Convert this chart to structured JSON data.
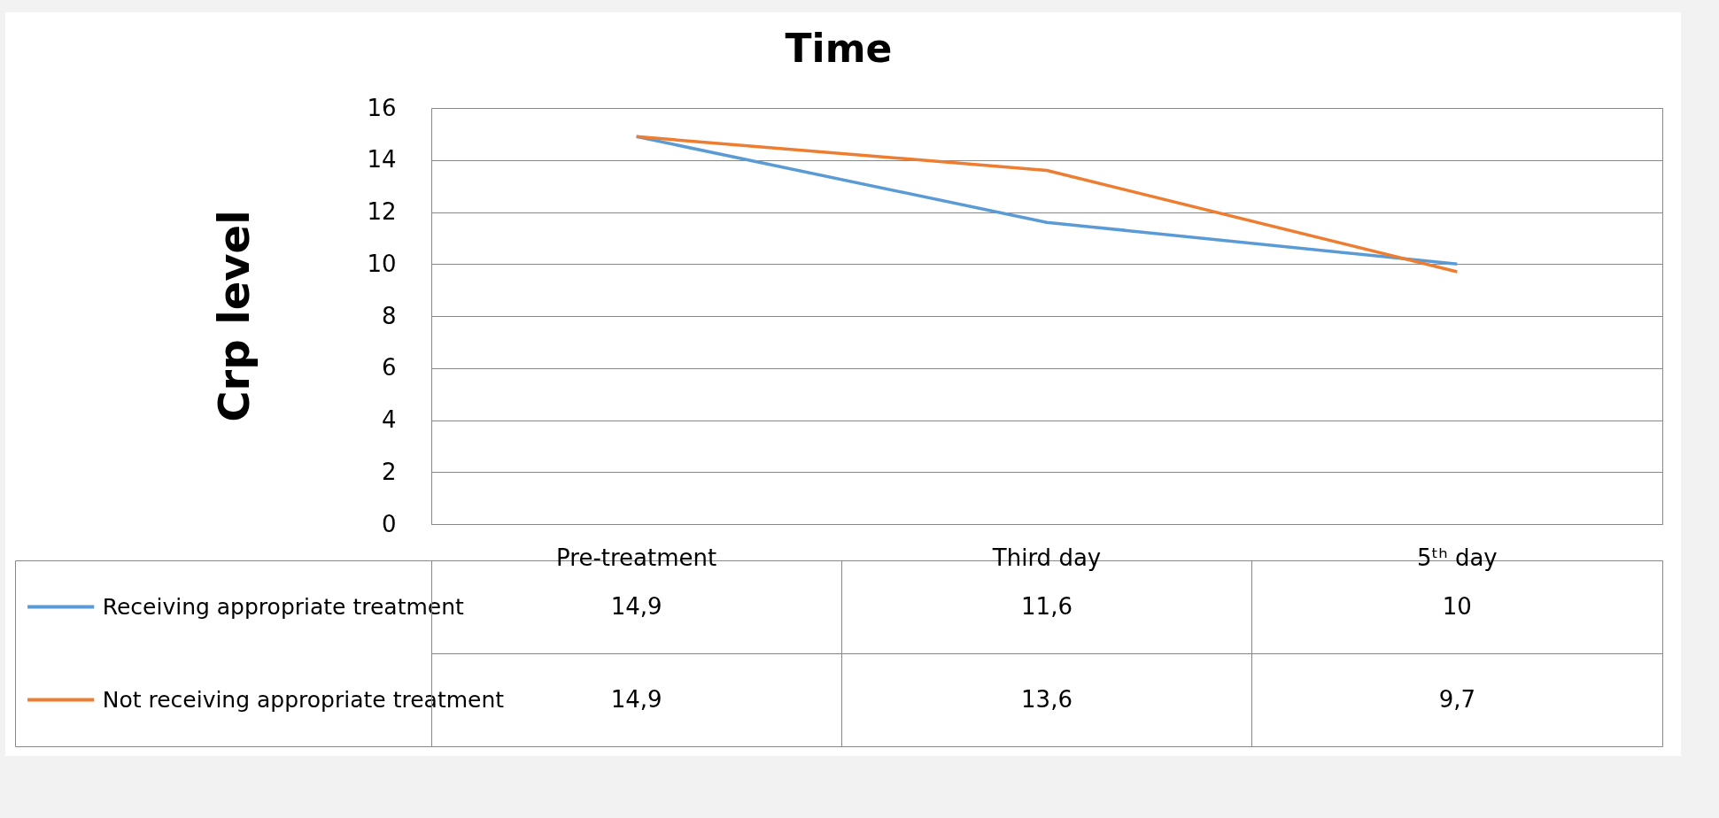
{
  "chart_data": {
    "type": "line",
    "title": "Time",
    "ylabel": "Crp level",
    "categories": [
      "Pre-treatment",
      "Third day",
      "5ᵗʰ day"
    ],
    "series": [
      {
        "name": "Receiving appropriate treatment",
        "color": "#5b9bd5",
        "values": [
          14.9,
          11.6,
          10
        ],
        "value_labels": [
          "14,9",
          "11,6",
          "10"
        ]
      },
      {
        "name": "Not receiving appropriate treatment",
        "color": "#ed7d31",
        "values": [
          14.9,
          13.6,
          9.7
        ],
        "value_labels": [
          "14,9",
          "13,6",
          "9,7"
        ]
      }
    ],
    "ylim": [
      0,
      16
    ],
    "yticks": [
      0,
      2,
      4,
      6,
      8,
      10,
      12,
      14,
      16
    ],
    "grid": "y",
    "legend": "bottom left",
    "marker": "none",
    "line_style": "solid"
  }
}
